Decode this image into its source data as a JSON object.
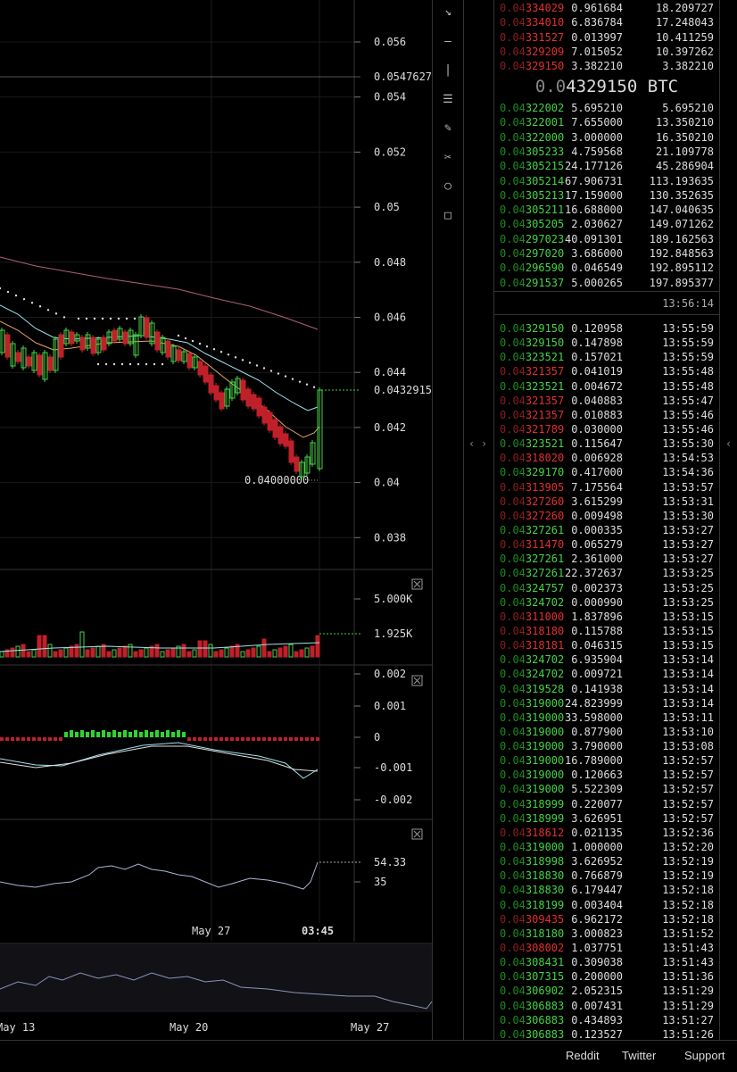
{
  "price_axis": [
    "0.056",
    "0.054",
    "0.052",
    "0.05",
    "0.048",
    "0.046",
    "0.044",
    "0.042",
    "0.04",
    "0.038"
  ],
  "price_marker_top": "0.0547627",
  "price_marker_last": "0.0432915",
  "low_marker": "0.04000000",
  "volume_axis": [
    "5.000K"
  ],
  "volume_last": "1.925K",
  "macd_axis": [
    "0.002",
    "0.001",
    "0",
    "-0.001",
    "-0.002"
  ],
  "rsi_axis": [
    "35"
  ],
  "rsi_last": "54.33",
  "time_axis": {
    "label1": "May 27",
    "label2": "03:45"
  },
  "navigator_axis": [
    "May 13",
    "May 20",
    "May 27"
  ],
  "toolbar": [
    "↘",
    "—",
    "|",
    "☰",
    "✎",
    "✂",
    "○",
    "□"
  ],
  "orderbook": {
    "asks": [
      {
        "price": "0.04334029",
        "size": "0.961684",
        "total": "18.209727"
      },
      {
        "price": "0.04334010",
        "size": "6.836784",
        "total": "17.248043"
      },
      {
        "price": "0.04331527",
        "size": "0.013997",
        "total": "10.411259"
      },
      {
        "price": "0.04329209",
        "size": "7.015052",
        "total": "10.397262"
      },
      {
        "price": "0.04329150",
        "size": "3.382210",
        "total": "3.382210"
      }
    ],
    "mid_price_prefix": "0.0",
    "mid_price_main": "4329150",
    "mid_price_unit": " BTC",
    "bids": [
      {
        "price": "0.04322002",
        "size": "5.695210",
        "total": "5.695210"
      },
      {
        "price": "0.04322001",
        "size": "7.655000",
        "total": "13.350210"
      },
      {
        "price": "0.04322000",
        "size": "3.000000",
        "total": "16.350210"
      },
      {
        "price": "0.04305233",
        "size": "4.759568",
        "total": "21.109778"
      },
      {
        "price": "0.04305215",
        "size": "24.177126",
        "total": "45.286904"
      },
      {
        "price": "0.04305214",
        "size": "67.906731",
        "total": "113.193635"
      },
      {
        "price": "0.04305213",
        "size": "17.159000",
        "total": "130.352635"
      },
      {
        "price": "0.04305211",
        "size": "16.688000",
        "total": "147.040635"
      },
      {
        "price": "0.04305205",
        "size": "2.030627",
        "total": "149.071262"
      },
      {
        "price": "0.04297023",
        "size": "40.091301",
        "total": "189.162563"
      },
      {
        "price": "0.04297020",
        "size": "3.686000",
        "total": "192.848563"
      },
      {
        "price": "0.04296590",
        "size": "0.046549",
        "total": "192.895112"
      },
      {
        "price": "0.04291537",
        "size": "5.000265",
        "total": "197.895377"
      }
    ]
  },
  "trades_header_time": "13:56:14",
  "trades": [
    {
      "price": "0.04329150",
      "size": "0.120958",
      "time": "13:55:59",
      "side": "buy"
    },
    {
      "price": "0.04329150",
      "size": "0.147898",
      "time": "13:55:59",
      "side": "buy"
    },
    {
      "price": "0.04323521",
      "size": "0.157021",
      "time": "13:55:59",
      "side": "buy"
    },
    {
      "price": "0.04321357",
      "size": "0.041019",
      "time": "13:55:48",
      "side": "sell"
    },
    {
      "price": "0.04323521",
      "size": "0.004672",
      "time": "13:55:48",
      "side": "buy"
    },
    {
      "price": "0.04321357",
      "size": "0.040883",
      "time": "13:55:47",
      "side": "sell"
    },
    {
      "price": "0.04321357",
      "size": "0.010883",
      "time": "13:55:46",
      "side": "sell"
    },
    {
      "price": "0.04321789",
      "size": "0.030000",
      "time": "13:55:46",
      "side": "sell"
    },
    {
      "price": "0.04323521",
      "size": "0.115647",
      "time": "13:55:30",
      "side": "buy"
    },
    {
      "price": "0.04318020",
      "size": "0.006928",
      "time": "13:54:53",
      "side": "sell"
    },
    {
      "price": "0.04329170",
      "size": "0.417000",
      "time": "13:54:36",
      "side": "buy"
    },
    {
      "price": "0.04313905",
      "size": "7.175564",
      "time": "13:53:57",
      "side": "sell"
    },
    {
      "price": "0.04327260",
      "size": "3.615299",
      "time": "13:53:31",
      "side": "sell"
    },
    {
      "price": "0.04327260",
      "size": "0.009498",
      "time": "13:53:30",
      "side": "sell"
    },
    {
      "price": "0.04327261",
      "size": "0.000335",
      "time": "13:53:27",
      "side": "buy"
    },
    {
      "price": "0.04311470",
      "size": "0.065279",
      "time": "13:53:27",
      "side": "sell"
    },
    {
      "price": "0.04327261",
      "size": "2.361000",
      "time": "13:53:27",
      "side": "buy"
    },
    {
      "price": "0.04327261",
      "size": "22.372637",
      "time": "13:53:25",
      "side": "buy"
    },
    {
      "price": "0.04324757",
      "size": "0.002373",
      "time": "13:53:25",
      "side": "buy"
    },
    {
      "price": "0.04324702",
      "size": "0.000990",
      "time": "13:53:25",
      "side": "buy"
    },
    {
      "price": "0.04311000",
      "size": "1.837896",
      "time": "13:53:15",
      "side": "sell"
    },
    {
      "price": "0.04318180",
      "size": "0.115788",
      "time": "13:53:15",
      "side": "sell"
    },
    {
      "price": "0.04318181",
      "size": "0.046315",
      "time": "13:53:15",
      "side": "sell"
    },
    {
      "price": "0.04324702",
      "size": "6.935904",
      "time": "13:53:14",
      "side": "buy"
    },
    {
      "price": "0.04324702",
      "size": "0.009721",
      "time": "13:53:14",
      "side": "buy"
    },
    {
      "price": "0.04319528",
      "size": "0.141938",
      "time": "13:53:14",
      "side": "buy"
    },
    {
      "price": "0.04319000",
      "size": "24.823999",
      "time": "13:53:14",
      "side": "buy"
    },
    {
      "price": "0.04319000",
      "size": "33.598000",
      "time": "13:53:11",
      "side": "buy"
    },
    {
      "price": "0.04319000",
      "size": "0.877900",
      "time": "13:53:10",
      "side": "buy"
    },
    {
      "price": "0.04319000",
      "size": "3.790000",
      "time": "13:53:08",
      "side": "buy"
    },
    {
      "price": "0.04319000",
      "size": "16.789000",
      "time": "13:52:57",
      "side": "buy"
    },
    {
      "price": "0.04319000",
      "size": "0.120663",
      "time": "13:52:57",
      "side": "buy"
    },
    {
      "price": "0.04319000",
      "size": "5.522309",
      "time": "13:52:57",
      "side": "buy"
    },
    {
      "price": "0.04318999",
      "size": "0.220077",
      "time": "13:52:57",
      "side": "buy"
    },
    {
      "price": "0.04318999",
      "size": "3.626951",
      "time": "13:52:57",
      "side": "buy"
    },
    {
      "price": "0.04318612",
      "size": "0.021135",
      "time": "13:52:36",
      "side": "sell"
    },
    {
      "price": "0.04319000",
      "size": "1.000000",
      "time": "13:52:20",
      "side": "buy"
    },
    {
      "price": "0.04318998",
      "size": "3.626952",
      "time": "13:52:19",
      "side": "buy"
    },
    {
      "price": "0.04318830",
      "size": "0.766879",
      "time": "13:52:19",
      "side": "buy"
    },
    {
      "price": "0.04318830",
      "size": "6.179447",
      "time": "13:52:18",
      "side": "buy"
    },
    {
      "price": "0.04318199",
      "size": "0.003404",
      "time": "13:52:18",
      "side": "buy"
    },
    {
      "price": "0.04309435",
      "size": "6.962172",
      "time": "13:52:18",
      "side": "sell"
    },
    {
      "price": "0.04318180",
      "size": "3.000823",
      "time": "13:51:52",
      "side": "buy"
    },
    {
      "price": "0.04308002",
      "size": "1.037751",
      "time": "13:51:43",
      "side": "sell"
    },
    {
      "price": "0.04308431",
      "size": "0.309038",
      "time": "13:51:43",
      "side": "buy"
    },
    {
      "price": "0.04307315",
      "size": "0.200000",
      "time": "13:51:36",
      "side": "buy"
    },
    {
      "price": "0.04306902",
      "size": "2.052315",
      "time": "13:51:29",
      "side": "buy"
    },
    {
      "price": "0.04306883",
      "size": "0.007431",
      "time": "13:51:29",
      "side": "buy"
    },
    {
      "price": "0.04306883",
      "size": "0.434893",
      "time": "13:51:27",
      "side": "buy"
    },
    {
      "price": "0.04306883",
      "size": "0.123527",
      "time": "13:51:26",
      "side": "buy"
    }
  ],
  "footer": {
    "reddit": "Reddit",
    "twitter": "Twitter",
    "support": "Support"
  },
  "colors": {
    "up": "#46d246",
    "down": "#c0202a",
    "ma1": "#9fe3ef",
    "ma2": "#e6a36a",
    "ma3": "#b0607a",
    "bg": "#000000"
  }
}
